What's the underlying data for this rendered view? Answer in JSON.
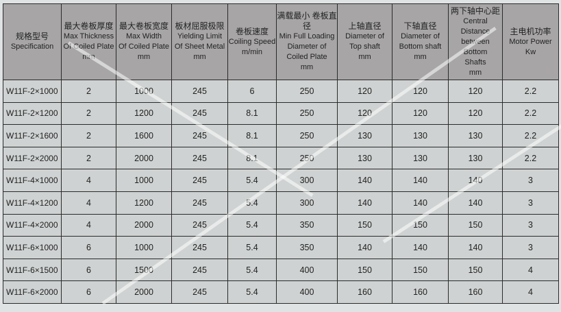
{
  "headers": [
    {
      "cn": "规格型号",
      "en": [
        "Specification"
      ]
    },
    {
      "cn": "最大卷板厚度",
      "en": [
        "Max Thickness",
        "Of Coiled Plate",
        "mm"
      ]
    },
    {
      "cn": "最大卷板宽度",
      "en": [
        "Max Width",
        "Of Coiled Plate",
        "mm"
      ]
    },
    {
      "cn": "板材屈服极限",
      "en": [
        "Yielding Limit",
        "Of Sheet Metal",
        "mm"
      ]
    },
    {
      "cn": "卷板速度",
      "en": [
        "Coiling Speed",
        "m/min"
      ]
    },
    {
      "cn": "满载最小 卷板直径",
      "en": [
        "Min Full Loading",
        "Diameter of",
        "Coiled Plate",
        "mm"
      ]
    },
    {
      "cn": "上轴直径",
      "en": [
        "Diameter of",
        "Top shaft",
        "mm"
      ]
    },
    {
      "cn": "下轴直径",
      "en": [
        "Diameter of",
        "Bottom shaft",
        "mm"
      ]
    },
    {
      "cn": "两下轴中心距",
      "en": [
        "Central Distance",
        "between Bottom",
        "Shafts",
        "mm"
      ]
    },
    {
      "cn": "主电机功率",
      "en": [
        "Motor Power",
        "Kw"
      ]
    }
  ],
  "rows": [
    [
      "W11F-2×1000",
      "2",
      "1000",
      "245",
      "6",
      "250",
      "120",
      "120",
      "120",
      "2.2"
    ],
    [
      "W11F-2×1200",
      "2",
      "1200",
      "245",
      "8.1",
      "250",
      "120",
      "120",
      "120",
      "2.2"
    ],
    [
      "W11F-2×1600",
      "2",
      "1600",
      "245",
      "8.1",
      "250",
      "130",
      "130",
      "130",
      "2.2"
    ],
    [
      "W11F-2×2000",
      "2",
      "2000",
      "245",
      "8.1",
      "250",
      "130",
      "130",
      "130",
      "2.2"
    ],
    [
      "W11F-4×1000",
      "4",
      "1000",
      "245",
      "5.4",
      "300",
      "140",
      "140",
      "140",
      "3"
    ],
    [
      "W11F-4×1200",
      "4",
      "1200",
      "245",
      "5.4",
      "300",
      "140",
      "140",
      "140",
      "3"
    ],
    [
      "W11F-4×2000",
      "4",
      "2000",
      "245",
      "5.4",
      "350",
      "150",
      "150",
      "150",
      "3"
    ],
    [
      "W11F-6×1000",
      "6",
      "1000",
      "245",
      "5.4",
      "350",
      "140",
      "140",
      "140",
      "3"
    ],
    [
      "W11F-6×1500",
      "6",
      "1500",
      "245",
      "5.4",
      "400",
      "150",
      "150",
      "150",
      "4"
    ],
    [
      "W11F-6×2000",
      "6",
      "2000",
      "245",
      "5.4",
      "400",
      "160",
      "160",
      "160",
      "4"
    ]
  ]
}
